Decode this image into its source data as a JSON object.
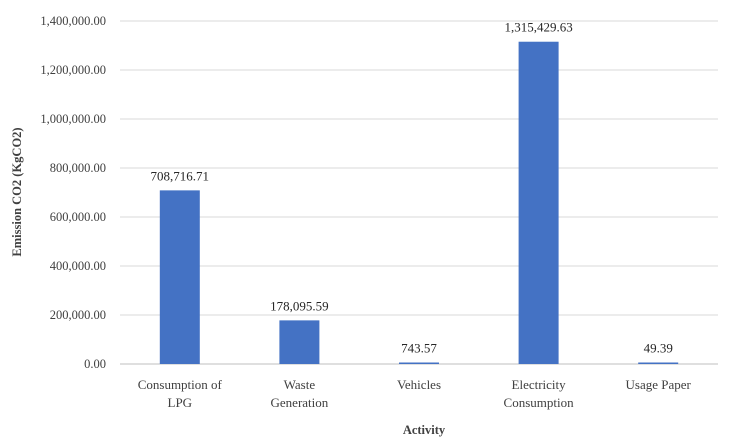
{
  "chart_data": {
    "type": "bar",
    "title": "",
    "xlabel": "Activity",
    "ylabel": "Emission CO2 (KgCO2)",
    "ylim": [
      0,
      1400000
    ],
    "ytick_values": [
      0,
      200000,
      400000,
      600000,
      800000,
      1000000,
      1200000,
      1400000
    ],
    "ytick_labels": [
      "0.00",
      "200,000.00",
      "400,000.00",
      "600,000.00",
      "800,000.00",
      "1,000,000.00",
      "1,200,000.00",
      "1,400,000.00"
    ],
    "grid": true,
    "legend": "none",
    "bar_color": "#4472c4",
    "categories": [
      [
        "Consumption of",
        "LPG"
      ],
      [
        "Waste",
        "Generation"
      ],
      [
        "Vehicles"
      ],
      [
        "Electricity",
        "Consumption"
      ],
      [
        "Usage Paper"
      ]
    ],
    "values": [
      708716.71,
      178095.59,
      743.57,
      1315429.63,
      49.39
    ],
    "value_labels": [
      "708,716.71",
      "178,095.59",
      "743.57",
      "1,315,429.63",
      "49.39"
    ]
  }
}
